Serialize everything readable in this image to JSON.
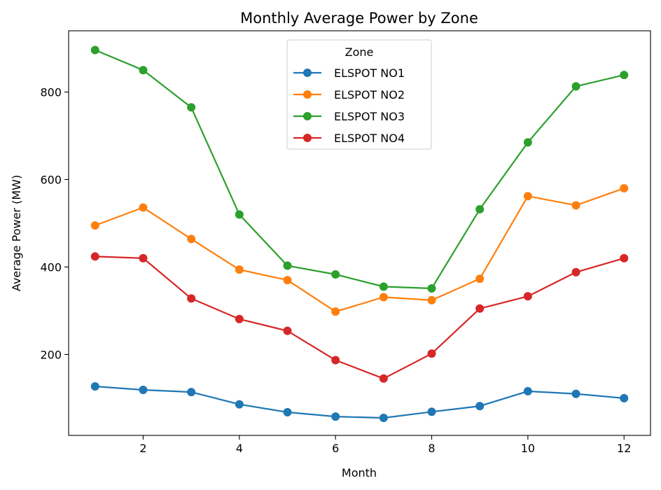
{
  "chart_data": {
    "type": "line",
    "title": "Monthly Average Power by Zone",
    "xlabel": "Month",
    "ylabel": "Average Power (MW)",
    "xlim": [
      0.45,
      12.55
    ],
    "ylim": [
      15,
      940
    ],
    "xticks": [
      2,
      4,
      6,
      8,
      10,
      12
    ],
    "yticks": [
      200,
      400,
      600,
      800
    ],
    "grid": false,
    "legend": {
      "title": "Zone",
      "placement": "upper-center"
    },
    "x": [
      1,
      2,
      3,
      4,
      5,
      6,
      7,
      8,
      9,
      10,
      11,
      12
    ],
    "series": [
      {
        "name": "ELSPOT NO1",
        "color": "#1f77b4",
        "values": [
          127,
          119,
          114,
          86,
          68,
          58,
          55,
          69,
          82,
          116,
          110,
          100
        ]
      },
      {
        "name": "ELSPOT NO2",
        "color": "#ff7f0e",
        "values": [
          495,
          536,
          464,
          394,
          370,
          298,
          331,
          324,
          373,
          562,
          541,
          580
        ]
      },
      {
        "name": "ELSPOT NO3",
        "color": "#2ca02c",
        "values": [
          896,
          850,
          765,
          520,
          403,
          383,
          355,
          351,
          532,
          685,
          813,
          839
        ]
      },
      {
        "name": "ELSPOT NO4",
        "color": "#d62728",
        "values": [
          424,
          420,
          328,
          281,
          254,
          187,
          145,
          202,
          305,
          333,
          388,
          420
        ]
      }
    ]
  }
}
